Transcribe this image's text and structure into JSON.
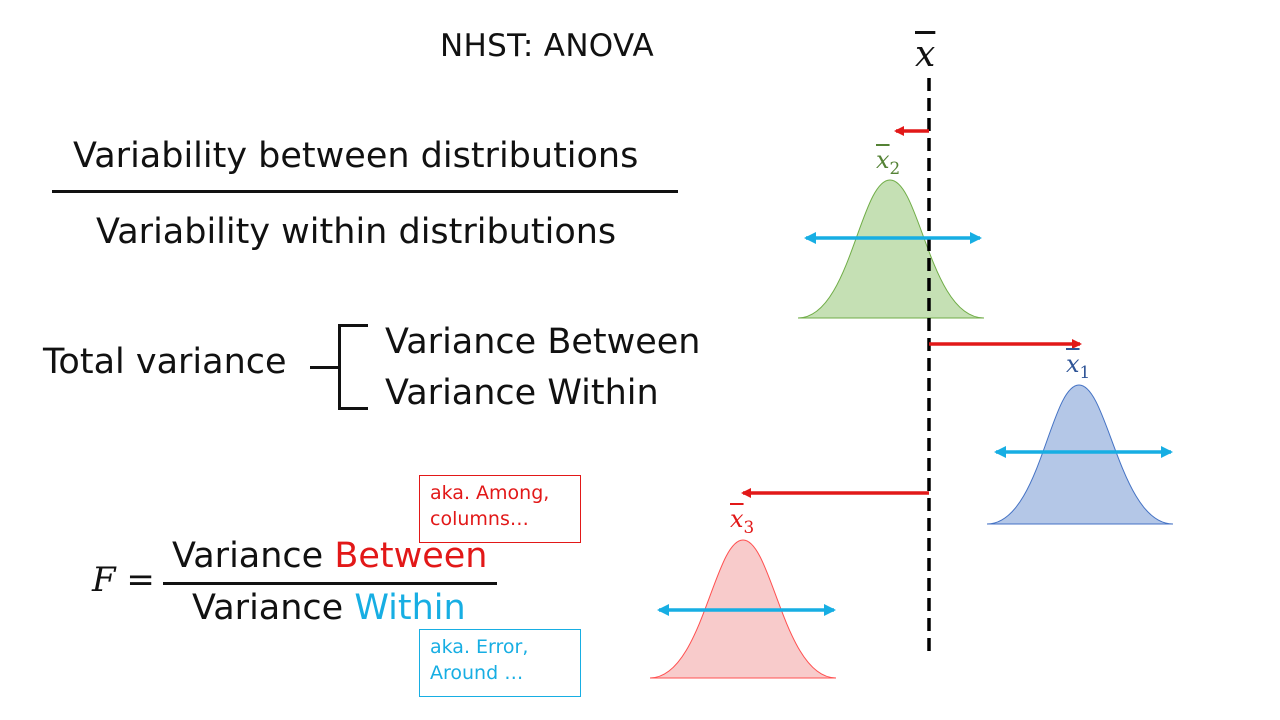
{
  "title": "NHST: ANOVA",
  "fraction": {
    "numerator": "Variability between distributions",
    "denominator": "Variability within distributions"
  },
  "total_variance": {
    "label": "Total variance",
    "components": [
      "Variance Between",
      "Variance Within"
    ]
  },
  "f_ratio": {
    "symbol": "F",
    "equals": "=",
    "word": "Variance",
    "between": "Between",
    "within": "Within"
  },
  "notes": {
    "among": [
      "aka. Among,",
      "columns…"
    ],
    "error": [
      "aka. Error,",
      "Around …"
    ]
  },
  "means": {
    "grand": "x",
    "group2": {
      "base": "x",
      "sub": "2"
    },
    "group1": {
      "base": "x",
      "sub": "1"
    },
    "group3": {
      "base": "x",
      "sub": "3"
    }
  },
  "colors": {
    "between": "#e21818",
    "within": "#17aee3",
    "group1": "#b4c7e7",
    "group2": "#c5e0b4",
    "group3": "#f8cbcb"
  }
}
